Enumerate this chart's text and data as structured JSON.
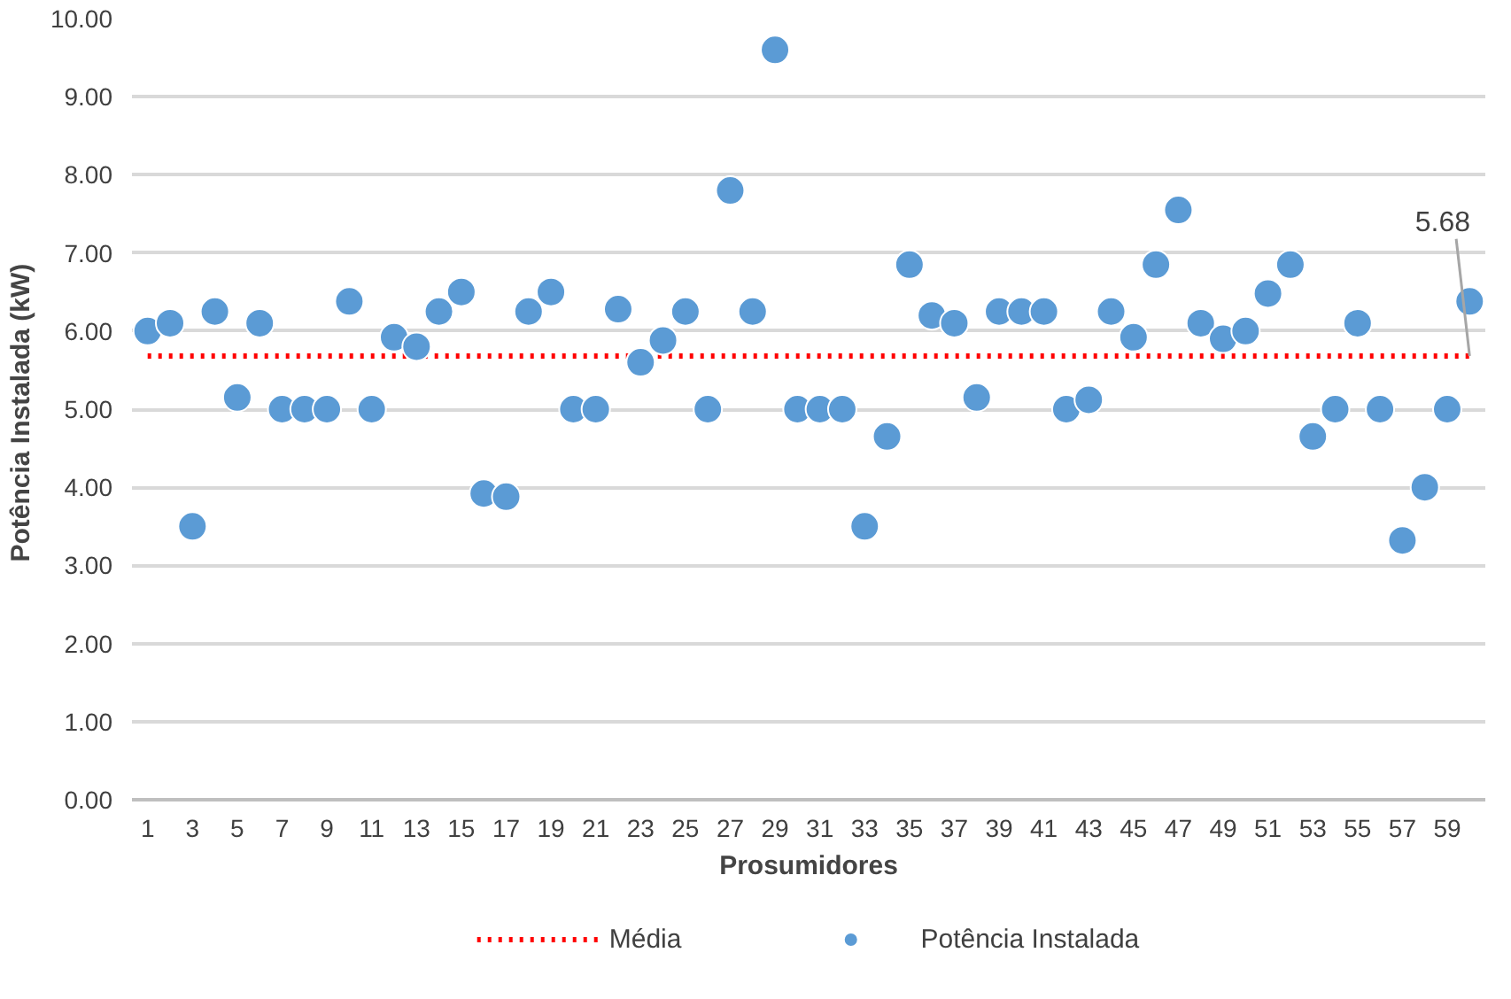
{
  "chart_data": {
    "type": "scatter",
    "xlabel": "Prosumidores",
    "ylabel": "Potência Instalada  (kW)",
    "x": [
      1,
      2,
      3,
      4,
      5,
      6,
      7,
      8,
      9,
      10,
      11,
      12,
      13,
      14,
      15,
      16,
      17,
      18,
      19,
      20,
      21,
      22,
      23,
      24,
      25,
      26,
      27,
      28,
      29,
      30,
      31,
      32,
      33,
      34,
      35,
      36,
      37,
      38,
      39,
      40,
      41,
      42,
      43,
      44,
      45,
      46,
      47,
      48,
      49,
      50,
      51,
      52,
      53,
      54,
      55,
      56,
      57,
      58,
      59,
      60
    ],
    "xlim": [
      0.3,
      60.7
    ],
    "xticks": [
      1,
      3,
      5,
      7,
      9,
      11,
      13,
      15,
      17,
      19,
      21,
      23,
      25,
      27,
      29,
      31,
      33,
      35,
      37,
      39,
      41,
      43,
      45,
      47,
      49,
      51,
      53,
      55,
      57,
      59
    ],
    "series": [
      {
        "name": "Potência Instalada",
        "color": "#5b9bd5",
        "values": [
          6.0,
          6.1,
          3.5,
          6.25,
          5.15,
          6.1,
          5.0,
          5.0,
          5.0,
          6.38,
          5.0,
          5.92,
          5.8,
          6.25,
          6.5,
          3.92,
          3.88,
          6.25,
          6.5,
          5.0,
          5.0,
          6.28,
          5.6,
          5.88,
          6.25,
          5.0,
          7.8,
          6.25,
          9.6,
          5.0,
          5.0,
          5.0,
          3.5,
          4.65,
          6.85,
          6.2,
          6.1,
          5.15,
          6.25,
          6.25,
          6.25,
          5.0,
          5.12,
          6.25,
          5.92,
          6.85,
          7.55,
          6.1,
          5.9,
          6.0,
          6.48,
          6.85,
          4.65,
          5.0,
          6.1,
          5.0,
          3.32,
          4.0,
          5.0,
          6.38
        ]
      }
    ],
    "ref_lines": [
      {
        "axis": "y",
        "value": 5.68,
        "label": "Média",
        "color": "#ff0000",
        "line_style": "dotted"
      }
    ],
    "annotations": [
      {
        "text": "5.68",
        "x": 60,
        "y": 5.68
      }
    ],
    "ylim": [
      0,
      10
    ],
    "yticks": [
      {
        "value": 0,
        "label": "0.00"
      },
      {
        "value": 1,
        "label": "1.00"
      },
      {
        "value": 2,
        "label": "2.00"
      },
      {
        "value": 3,
        "label": "3.00"
      },
      {
        "value": 4,
        "label": "4.00"
      },
      {
        "value": 5,
        "label": "5.00"
      },
      {
        "value": 6,
        "label": "6.00"
      },
      {
        "value": 7,
        "label": "7.00"
      },
      {
        "value": 8,
        "label": "8.00"
      },
      {
        "value": 9,
        "label": "9.00"
      },
      {
        "value": 10,
        "label": "10.00"
      }
    ],
    "grid": "y",
    "legend": "bottom",
    "marker": "circle"
  }
}
